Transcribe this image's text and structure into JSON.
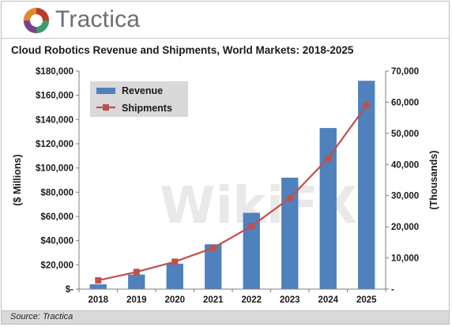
{
  "header": {
    "brand": "Tractica",
    "logo_icon": "tractica-logo-icon"
  },
  "chart_data": {
    "type": "bar+line",
    "title": "Cloud Robotics Revenue and Shipments, World Markets: 2018-2025",
    "categories": [
      "2018",
      "2019",
      "2020",
      "2021",
      "2022",
      "2023",
      "2024",
      "2025"
    ],
    "series": [
      {
        "name": "Revenue",
        "type": "bar",
        "axis": "left",
        "color": "#4f81bd",
        "values": [
          4000,
          12000,
          21000,
          37000,
          63000,
          92000,
          133000,
          172000
        ]
      },
      {
        "name": "Shipments",
        "type": "line",
        "axis": "right",
        "color": "#c0504d",
        "values": [
          2800,
          5500,
          8800,
          13200,
          20200,
          29200,
          42000,
          59000
        ]
      }
    ],
    "ylabel": "($ Millions)",
    "ylabel_right": "(Thousands)",
    "ylim": [
      0,
      180000
    ],
    "ylim_right": [
      0,
      70000
    ],
    "yticks": [
      "$-",
      "$20,000",
      "$40,000",
      "$60,000",
      "$80,000",
      "$100,000",
      "$120,000",
      "$140,000",
      "$160,000",
      "$180,000"
    ],
    "yticks_right": [
      "-",
      "10,000",
      "20,000",
      "30,000",
      "40,000",
      "50,000",
      "60,000",
      "70,000"
    ],
    "legend_position": "top-left",
    "grid": false,
    "watermark": "WikiFX"
  },
  "footer": {
    "source": "Source: Tractica"
  }
}
